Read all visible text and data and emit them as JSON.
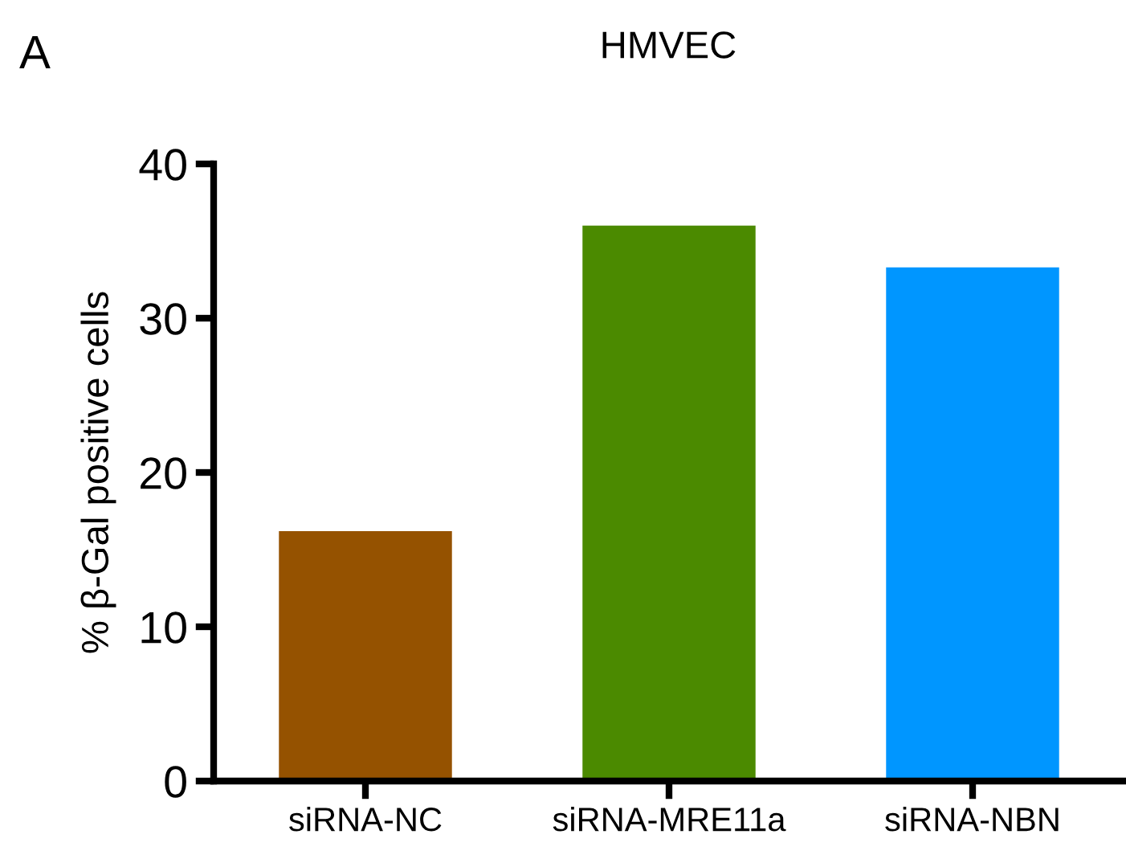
{
  "chart_data": {
    "type": "bar",
    "title": "HMVEC",
    "ylabel": "% β-Gal positive cells",
    "annotations": [
      "A"
    ],
    "categories": [
      "siRNA-NC",
      "siRNA-MRE11a",
      "siRNA-NBN"
    ],
    "values": [
      16.2,
      36.0,
      33.3
    ],
    "colors": [
      "#955200",
      "#4b8a00",
      "#0096ff"
    ],
    "ylim": [
      0,
      40
    ],
    "yticks": [
      0,
      10,
      20,
      30,
      40
    ],
    "grid": false
  }
}
